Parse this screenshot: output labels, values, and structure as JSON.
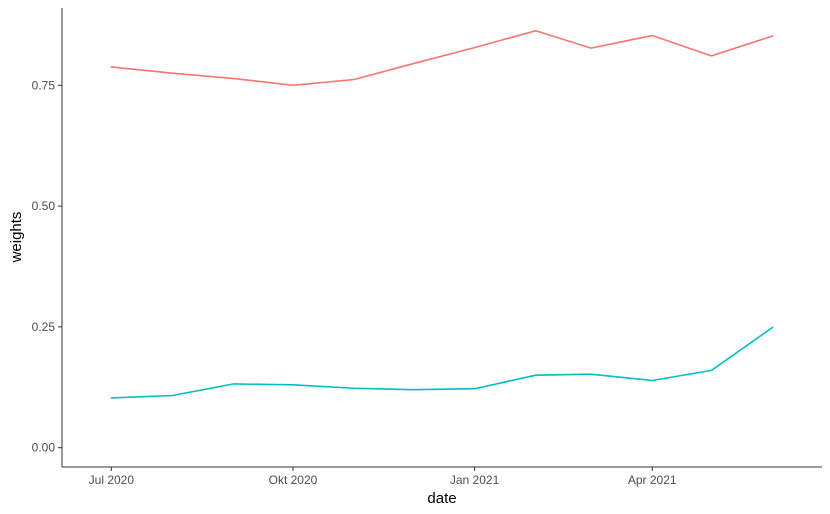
{
  "chart_data": {
    "type": "line",
    "title": "",
    "xlabel": "date",
    "ylabel": "weights",
    "x": [
      "2020-07-01",
      "2020-08-01",
      "2020-09-01",
      "2020-10-01",
      "2020-11-01",
      "2020-12-01",
      "2021-01-01",
      "2021-02-01",
      "2021-03-01",
      "2021-04-01",
      "2021-05-01",
      "2021-06-01"
    ],
    "series": [
      {
        "color": "#F8766D",
        "values": [
          0.788,
          0.775,
          0.764,
          0.75,
          0.762,
          0.795,
          0.828,
          0.863,
          0.827,
          0.853,
          0.811,
          0.852
        ]
      },
      {
        "color": "#00BFC4",
        "values": [
          0.103,
          0.108,
          0.132,
          0.13,
          0.123,
          0.12,
          0.122,
          0.15,
          0.152,
          0.139,
          0.16,
          0.249
        ]
      }
    ],
    "xlim": [
      "2020-06-06",
      "2021-06-26"
    ],
    "ylim": [
      -0.04,
      0.91
    ],
    "x_ticks": [
      {
        "date": "2020-07-01",
        "label": "Jul 2020"
      },
      {
        "date": "2020-10-01",
        "label": "Okt 2020"
      },
      {
        "date": "2021-01-01",
        "label": "Jan 2021"
      },
      {
        "date": "2021-04-01",
        "label": "Apr 2021"
      }
    ],
    "y_ticks": [
      {
        "value": 0.0,
        "label": "0.00"
      },
      {
        "value": 0.25,
        "label": "0.25"
      },
      {
        "value": 0.5,
        "label": "0.50"
      },
      {
        "value": 0.75,
        "label": "0.75"
      }
    ],
    "grid": false,
    "legend": "none"
  }
}
